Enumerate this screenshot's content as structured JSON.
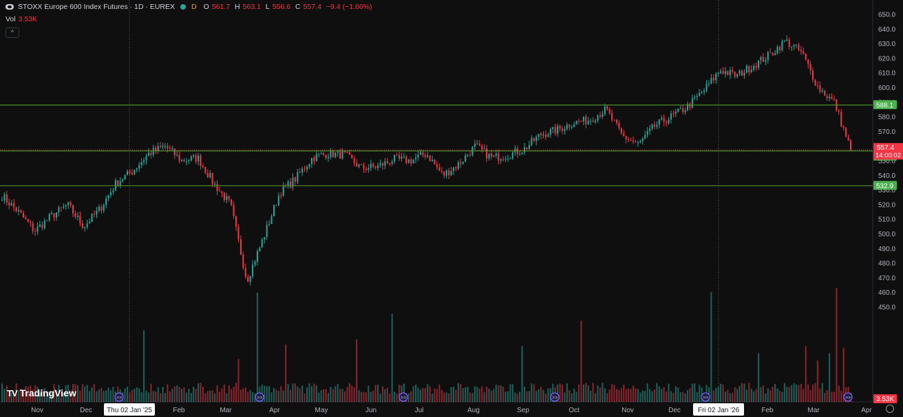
{
  "header": {
    "symbol_icon": "symbol-logo-icon",
    "title": "STOXX Europe 600 Index Futures · 1D · EUREX",
    "market_dot_color": "#26a69a",
    "d_badge": "D",
    "o_label": "O",
    "o_value": "561.7",
    "h_label": "H",
    "h_value": "563.1",
    "l_label": "L",
    "l_value": "556.6",
    "c_label": "C",
    "c_value": "557.4",
    "change": "−9.4 (−1.66%)",
    "vol_label": "Vol",
    "vol_value": "3.53K",
    "collapse_icon": "chevron-up-icon"
  },
  "branding": {
    "logo_mark": "TV",
    "name": "TradingView"
  },
  "colors": {
    "up": "#26a69a",
    "down": "#f23645",
    "hline": "#4a8f2a",
    "hline_label": "#4caf50",
    "price_label": "#f23645"
  },
  "chart_data": {
    "type": "candlestick",
    "y_ticks": [
      450,
      460,
      470,
      480,
      490,
      500,
      510,
      520,
      530,
      540,
      550,
      560,
      570,
      580,
      590,
      600,
      610,
      620,
      630,
      640,
      650
    ],
    "ylim": [
      441.9,
      653.8
    ],
    "x_tick_labels": [
      "Nov",
      "Dec",
      "Thu 02 Jan '25",
      "Feb",
      "Mar",
      "Apr",
      "May",
      "Jun",
      "Jul",
      "Aug",
      "Sep",
      "Oct",
      "Nov",
      "Dec",
      "Fri 02 Jan '26",
      "Feb",
      "Mar",
      "Apr"
    ],
    "highlighted_dates": [
      "Thu 02 Jan '25",
      "Fri 02 Jan '26"
    ],
    "horizontal_lines": [
      {
        "value": 588.1,
        "label": "588.1"
      },
      {
        "value": 556.7,
        "label": "556.7"
      },
      {
        "value": 532.9,
        "label": "532.9"
      }
    ],
    "last_price": {
      "value": 557.4,
      "label": "557.4",
      "countdown": "14:00:02"
    },
    "volume_label": "3.53K",
    "events_icon": "dividend-event-icon",
    "events_at_months": [
      "Thu 02 Jan '25",
      "Mar",
      "Jun",
      "Sep",
      "Dec",
      "Mar"
    ],
    "close_anchors": [
      [
        "Nov",
        526
      ],
      [
        "Nov-mid",
        515
      ],
      [
        "Nov-end",
        502
      ],
      [
        "Dec",
        512
      ],
      [
        "Dec-mid",
        520
      ],
      [
        "Thu 02 Jan '25",
        505
      ],
      [
        "Jan-mid",
        517
      ],
      [
        "Jan-end",
        535
      ],
      [
        "Feb",
        543
      ],
      [
        "Feb-mid",
        555
      ],
      [
        "Feb-end",
        560
      ],
      [
        "Mar",
        550
      ],
      [
        "Mar-mid",
        552
      ],
      [
        "Mar-end",
        534
      ],
      [
        "Apr",
        520
      ],
      [
        "Apr-low",
        468
      ],
      [
        "Apr-mid",
        497
      ],
      [
        "Apr-end",
        528
      ],
      [
        "May",
        538
      ],
      [
        "May-mid",
        552
      ],
      [
        "May-end",
        555
      ],
      [
        "Jun",
        554
      ],
      [
        "Jun-mid",
        545
      ],
      [
        "Jun-end",
        546
      ],
      [
        "Jul",
        551
      ],
      [
        "Jul-mid",
        550
      ],
      [
        "Jul-end",
        555
      ],
      [
        "Aug",
        540
      ],
      [
        "Aug-mid",
        548
      ],
      [
        "Aug-end",
        560
      ],
      [
        "Sep",
        552
      ],
      [
        "Sep-mid",
        554
      ],
      [
        "Sep-end",
        558
      ],
      [
        "Oct",
        568
      ],
      [
        "Oct-mid",
        571
      ],
      [
        "Oct-end",
        576
      ],
      [
        "Nov",
        578
      ],
      [
        "Nov-peak",
        585
      ],
      [
        "Nov-mid",
        567
      ],
      [
        "Nov-low",
        561
      ],
      [
        "Dec",
        574
      ],
      [
        "Dec-mid",
        580
      ],
      [
        "Dec-end",
        587
      ],
      [
        "Fri 02 Jan '26",
        598
      ],
      [
        "Jan-mid",
        612
      ],
      [
        "Jan-end",
        608
      ],
      [
        "Feb",
        615
      ],
      [
        "Feb-mid",
        622
      ],
      [
        "Feb-end",
        632
      ],
      [
        "Mar",
        624
      ],
      [
        "Mar-mid",
        600
      ],
      [
        "Mar-late",
        590
      ],
      [
        "Mar-end",
        557.4
      ]
    ]
  }
}
